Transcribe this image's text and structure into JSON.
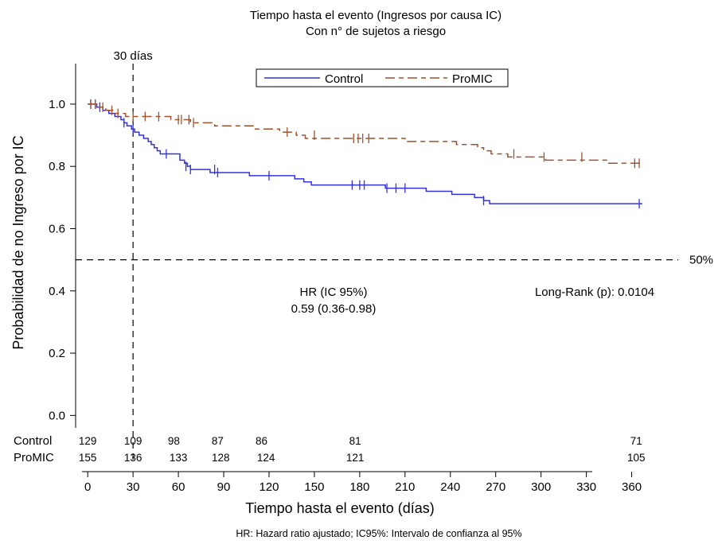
{
  "chart_data": {
    "type": "line",
    "title": "Tiempo hasta el evento (Ingresos por causa IC)",
    "subtitle": "Con n° de sujetos a riesgo",
    "xlabel": "Tiempo hasta el evento (días)",
    "ylabel": "Probabilidad de no Ingreso por IC",
    "xlim": [
      -8,
      395
    ],
    "ylim": [
      -0.04,
      1.13
    ],
    "x_ticks": [
      "0",
      "30",
      "60",
      "90",
      "120",
      "150",
      "180",
      "210",
      "240",
      "270",
      "300",
      "330",
      "360"
    ],
    "y_ticks": [
      "0.0",
      "0.2",
      "0.4",
      "0.6",
      "0.8",
      "1.0"
    ],
    "grid": false,
    "legend_position": "top-center",
    "series": [
      {
        "name": "Control",
        "color": "#3333dd",
        "style": "solid",
        "steps": [
          [
            0,
            1.0
          ],
          [
            6,
            0.99
          ],
          [
            10,
            0.98
          ],
          [
            14,
            0.97
          ],
          [
            18,
            0.96
          ],
          [
            22,
            0.95
          ],
          [
            24,
            0.94
          ],
          [
            26,
            0.93
          ],
          [
            29,
            0.92
          ],
          [
            31,
            0.91
          ],
          [
            34,
            0.9
          ],
          [
            37,
            0.89
          ],
          [
            40,
            0.88
          ],
          [
            42,
            0.87
          ],
          [
            44,
            0.86
          ],
          [
            46,
            0.85
          ],
          [
            48,
            0.84
          ],
          [
            56,
            0.84
          ],
          [
            61,
            0.82
          ],
          [
            64,
            0.81
          ],
          [
            66,
            0.8
          ],
          [
            68,
            0.79
          ],
          [
            78,
            0.79
          ],
          [
            81,
            0.78
          ],
          [
            101,
            0.78
          ],
          [
            107,
            0.77
          ],
          [
            134,
            0.77
          ],
          [
            137,
            0.76
          ],
          [
            143,
            0.75
          ],
          [
            148,
            0.74
          ],
          [
            193,
            0.74
          ],
          [
            197,
            0.73
          ],
          [
            218,
            0.73
          ],
          [
            224,
            0.72
          ],
          [
            241,
            0.71
          ],
          [
            256,
            0.7
          ],
          [
            262,
            0.69
          ],
          [
            266,
            0.68
          ],
          [
            367,
            0.68
          ]
        ],
        "censored": [
          [
            2,
            1.0
          ],
          [
            5,
            1.0
          ],
          [
            8,
            0.99
          ],
          [
            24,
            0.94
          ],
          [
            30,
            0.92
          ],
          [
            52,
            0.84
          ],
          [
            65,
            0.8
          ],
          [
            68,
            0.79
          ],
          [
            84,
            0.79
          ],
          [
            86,
            0.78
          ],
          [
            120,
            0.77
          ],
          [
            175,
            0.74
          ],
          [
            180,
            0.74
          ],
          [
            183,
            0.74
          ],
          [
            198,
            0.73
          ],
          [
            204,
            0.73
          ],
          [
            210,
            0.73
          ],
          [
            262,
            0.69
          ],
          [
            365,
            0.68
          ]
        ]
      },
      {
        "name": "ProMIC",
        "color": "#a0522d",
        "style": "dashed",
        "steps": [
          [
            0,
            1.0
          ],
          [
            6,
            0.99
          ],
          [
            12,
            0.98
          ],
          [
            18,
            0.97
          ],
          [
            25,
            0.96
          ],
          [
            31,
            0.96
          ],
          [
            55,
            0.95
          ],
          [
            68,
            0.94
          ],
          [
            72,
            0.94
          ],
          [
            84,
            0.93
          ],
          [
            110,
            0.92
          ],
          [
            127,
            0.91
          ],
          [
            138,
            0.9
          ],
          [
            144,
            0.89
          ],
          [
            175,
            0.89
          ],
          [
            210,
            0.88
          ],
          [
            238,
            0.88
          ],
          [
            244,
            0.87
          ],
          [
            258,
            0.86
          ],
          [
            262,
            0.85
          ],
          [
            267,
            0.84
          ],
          [
            275,
            0.84
          ],
          [
            278,
            0.83
          ],
          [
            300,
            0.83
          ],
          [
            303,
            0.82
          ],
          [
            338,
            0.82
          ],
          [
            344,
            0.81
          ],
          [
            368,
            0.81
          ]
        ],
        "censored": [
          [
            2,
            1.0
          ],
          [
            5,
            1.0
          ],
          [
            10,
            0.99
          ],
          [
            16,
            0.98
          ],
          [
            20,
            0.97
          ],
          [
            30,
            0.96
          ],
          [
            38,
            0.96
          ],
          [
            47,
            0.96
          ],
          [
            60,
            0.95
          ],
          [
            62,
            0.95
          ],
          [
            67,
            0.95
          ],
          [
            70,
            0.94
          ],
          [
            132,
            0.91
          ],
          [
            150,
            0.9
          ],
          [
            176,
            0.89
          ],
          [
            179,
            0.89
          ],
          [
            182,
            0.89
          ],
          [
            186,
            0.89
          ],
          [
            282,
            0.84
          ],
          [
            302,
            0.83
          ],
          [
            327,
            0.83
          ],
          [
            362,
            0.81
          ],
          [
            365,
            0.81
          ]
        ]
      }
    ],
    "reference_lines": {
      "horizontal": {
        "y": 0.5,
        "label": "50%"
      },
      "vertical": {
        "x": 30,
        "label": "30 días"
      }
    },
    "annotations": {
      "hr_title": "HR (IC 95%)",
      "hr_value": "0.59 (0.36-0.98)",
      "logrank": "Long-Rank (p): 0.0104"
    },
    "risk_table": {
      "rows": [
        {
          "label": "Control",
          "points": [
            [
              0,
              "129"
            ],
            [
              30,
              "109"
            ],
            [
              57,
              "98"
            ],
            [
              86,
              "87"
            ],
            [
              115,
              "86"
            ],
            [
              177,
              "81"
            ],
            [
              363,
              "71"
            ]
          ]
        },
        {
          "label": "ProMIC",
          "points": [
            [
              0,
              "155"
            ],
            [
              30,
              "136"
            ],
            [
              60,
              "133"
            ],
            [
              88,
              "128"
            ],
            [
              118,
              "124"
            ],
            [
              177,
              "121"
            ],
            [
              363,
              "105"
            ]
          ]
        }
      ]
    },
    "footnote": "HR: Hazard ratio ajustado; IC95%: Intervalo de confianza al 95%"
  }
}
